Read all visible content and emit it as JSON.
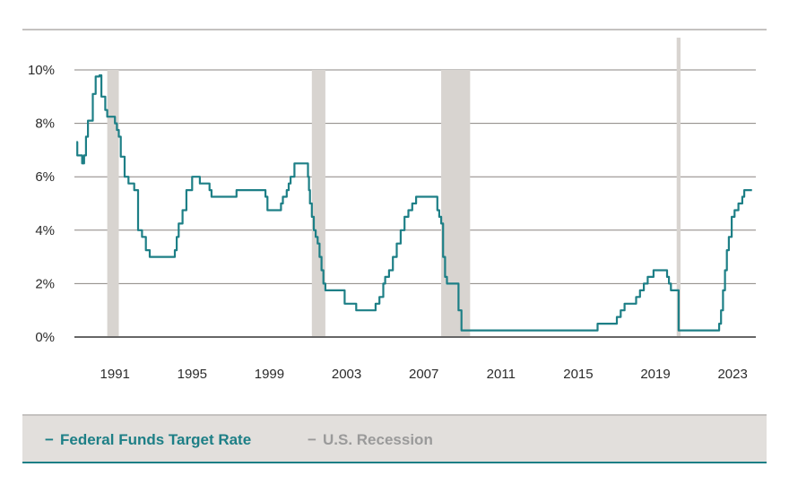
{
  "colors": {
    "rate_line": "#1d7f86",
    "recession": "#d8d4d0",
    "legend_bg": "#e2dfdc",
    "recession_text": "#9a9a9a",
    "grid": "#8a8480",
    "axis": "#333333",
    "bottom_rule": "#1d7f86"
  },
  "legend": {
    "rate_marker": "−",
    "rate_label": "Federal Funds Target Rate",
    "recession_marker": "−",
    "recession_label": "U.S. Recession"
  },
  "chart_data": {
    "type": "line",
    "x_ticks": [
      1991,
      1995,
      1999,
      2003,
      2007,
      2011,
      2015,
      2019,
      2023
    ],
    "x_tick_labels": [
      "1991",
      "1995",
      "1999",
      "2003",
      "2007",
      "2011",
      "2015",
      "2019",
      "2023"
    ],
    "y_ticks": [
      0,
      2,
      4,
      6,
      8,
      10
    ],
    "y_tick_labels": [
      "0%",
      "2%",
      "4%",
      "6%",
      "8%",
      "10%"
    ],
    "xlim": [
      1988.9,
      2024.2
    ],
    "ylim": [
      0,
      10
    ],
    "grid": true,
    "legend_position": "bottom",
    "recessions": [
      {
        "start": 1990.6,
        "end": 1991.2
      },
      {
        "start": 2001.2,
        "end": 2001.9
      },
      {
        "start": 2007.9,
        "end": 2009.4
      },
      {
        "start": 2020.1,
        "end": 2020.3
      }
    ],
    "series": [
      {
        "name": "Federal Funds Target Rate",
        "x": [
          1989.0,
          1989.05,
          1989.1,
          1989.2,
          1989.3,
          1989.4,
          1989.5,
          1989.6,
          1989.7,
          1989.85,
          1990.0,
          1990.1,
          1990.2,
          1990.3,
          1990.4,
          1990.5,
          1990.6,
          1990.7,
          1990.8,
          1990.9,
          1991.0,
          1991.1,
          1991.2,
          1991.3,
          1991.5,
          1991.7,
          1991.9,
          1992.0,
          1992.2,
          1992.4,
          1992.6,
          1992.8,
          1993.0,
          1994.0,
          1994.1,
          1994.2,
          1994.3,
          1994.5,
          1994.7,
          1994.9,
          1995.0,
          1995.2,
          1995.4,
          1995.6,
          1995.9,
          1996.0,
          1997.2,
          1997.3,
          1998.7,
          1998.8,
          1998.9,
          1999.5,
          1999.6,
          1999.7,
          1999.9,
          2000.0,
          2000.1,
          2000.3,
          2000.4,
          2000.9,
          2001.0,
          2001.05,
          2001.1,
          2001.2,
          2001.3,
          2001.4,
          2001.5,
          2001.6,
          2001.7,
          2001.8,
          2001.9,
          2001.95,
          2002.8,
          2002.9,
          2003.4,
          2003.5,
          2004.4,
          2004.5,
          2004.7,
          2004.9,
          2005.0,
          2005.2,
          2005.4,
          2005.6,
          2005.8,
          2006.0,
          2006.2,
          2006.4,
          2006.6,
          2007.6,
          2007.7,
          2007.8,
          2007.9,
          2008.0,
          2008.1,
          2008.2,
          2008.3,
          2008.7,
          2008.8,
          2008.95,
          2015.9,
          2016.0,
          2016.9,
          2017.0,
          2017.2,
          2017.4,
          2017.7,
          2018.0,
          2018.2,
          2018.4,
          2018.6,
          2018.9,
          2019.5,
          2019.6,
          2019.7,
          2019.8,
          2020.1,
          2020.2,
          2022.2,
          2022.3,
          2022.4,
          2022.5,
          2022.6,
          2022.7,
          2022.8,
          2022.95,
          2023.1,
          2023.3,
          2023.5,
          2023.6,
          2024.0
        ],
        "values": [
          7.3,
          6.8,
          6.8,
          6.8,
          6.5,
          6.8,
          7.5,
          8.1,
          8.1,
          9.1,
          9.75,
          9.75,
          9.8,
          9.0,
          9.0,
          8.5,
          8.25,
          8.25,
          8.25,
          8.25,
          8.0,
          7.75,
          7.5,
          6.75,
          6.0,
          5.75,
          5.75,
          5.5,
          4.0,
          3.75,
          3.25,
          3.0,
          3.0,
          3.0,
          3.25,
          3.75,
          4.25,
          4.75,
          5.5,
          5.5,
          6.0,
          6.0,
          5.75,
          5.75,
          5.5,
          5.25,
          5.25,
          5.5,
          5.5,
          5.25,
          4.75,
          4.75,
          5.0,
          5.25,
          5.5,
          5.75,
          6.0,
          6.5,
          6.5,
          6.5,
          6.0,
          5.5,
          5.0,
          4.5,
          4.0,
          3.75,
          3.5,
          3.0,
          2.5,
          2.0,
          1.75,
          1.75,
          1.75,
          1.25,
          1.25,
          1.0,
          1.0,
          1.25,
          1.5,
          2.0,
          2.25,
          2.5,
          3.0,
          3.5,
          4.0,
          4.5,
          4.75,
          5.0,
          5.25,
          5.25,
          4.75,
          4.5,
          4.25,
          3.0,
          2.25,
          2.0,
          2.0,
          2.0,
          1.0,
          0.25,
          0.25,
          0.5,
          0.5,
          0.75,
          1.0,
          1.25,
          1.25,
          1.5,
          1.75,
          2.0,
          2.25,
          2.5,
          2.5,
          2.25,
          2.0,
          1.75,
          1.75,
          0.25,
          0.25,
          0.5,
          1.0,
          1.75,
          2.5,
          3.25,
          3.75,
          4.5,
          4.75,
          5.0,
          5.25,
          5.5,
          5.5
        ]
      }
    ]
  }
}
